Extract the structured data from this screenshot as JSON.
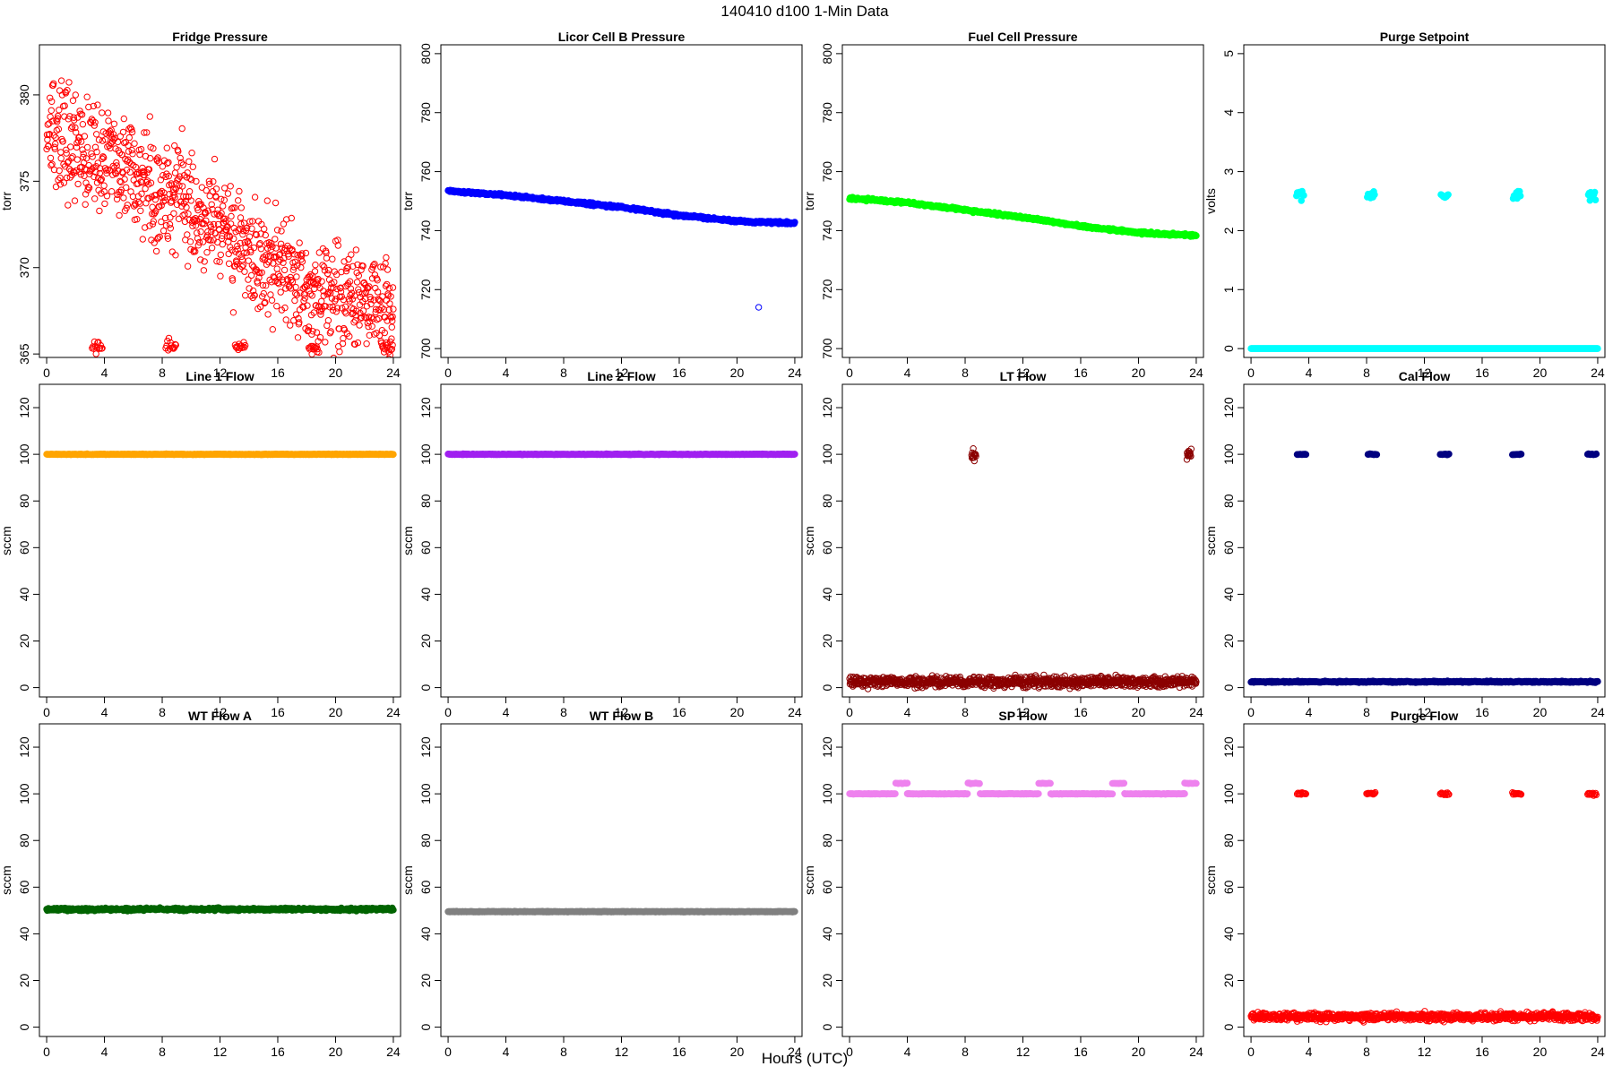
{
  "figure": {
    "title": "140410    d100    1-Min Data",
    "xlabel": "Hours (UTC)"
  },
  "chart_data": [
    {
      "type": "scatter",
      "title": "Fridge Pressure",
      "ylabel": "torr",
      "color": "#ff0000",
      "xlim": [
        -0.5,
        24.5
      ],
      "ylim": [
        364.8,
        382.9
      ],
      "xticks": [
        0,
        4,
        8,
        12,
        16,
        20,
        24
      ],
      "yticks": [
        365,
        370,
        375,
        380
      ],
      "trend": [
        [
          0,
          378
        ],
        [
          4,
          376.2
        ],
        [
          8,
          374.4
        ],
        [
          12,
          372.2
        ],
        [
          16,
          369.8
        ],
        [
          20,
          368.2
        ],
        [
          24,
          367.7
        ]
      ],
      "noise": 2.2,
      "events": [
        [
          3.5,
          365.4
        ],
        [
          8.6,
          365.5
        ],
        [
          13.4,
          365.4
        ],
        [
          18.5,
          365.4
        ],
        [
          23.6,
          365.4
        ]
      ],
      "event_halfwidth": 0.35,
      "event_spread": 0.25,
      "point_style": "open",
      "density": 1
    },
    {
      "type": "scatter",
      "title": "Licor Cell B Pressure",
      "ylabel": "torr",
      "color": "#0000ff",
      "xlim": [
        -0.5,
        24.5
      ],
      "ylim": [
        697,
        803
      ],
      "xticks": [
        0,
        4,
        8,
        12,
        16,
        20,
        24
      ],
      "yticks": [
        700,
        720,
        740,
        760,
        780,
        800
      ],
      "trend": [
        [
          0,
          753.5
        ],
        [
          4,
          752
        ],
        [
          8,
          750
        ],
        [
          12,
          748
        ],
        [
          16,
          745.2
        ],
        [
          20,
          743.2
        ],
        [
          24,
          742.5
        ]
      ],
      "noise": 0.3,
      "outliers": [
        [
          21.5,
          714
        ]
      ],
      "point_style": "dense",
      "density": 1
    },
    {
      "type": "scatter",
      "title": "Fuel Cell Pressure",
      "ylabel": "torr",
      "color": "#00ff00",
      "xlim": [
        -0.5,
        24.5
      ],
      "ylim": [
        697,
        803
      ],
      "xticks": [
        0,
        4,
        8,
        12,
        16,
        20,
        24
      ],
      "yticks": [
        700,
        720,
        740,
        760,
        780,
        800
      ],
      "trend": [
        [
          0,
          751
        ],
        [
          4,
          749.5
        ],
        [
          8,
          747
        ],
        [
          12,
          744.5
        ],
        [
          16,
          741.5
        ],
        [
          20,
          739.3
        ],
        [
          24,
          738.3
        ]
      ],
      "noise": 0.3,
      "point_style": "dense",
      "density": 1
    },
    {
      "type": "scatter",
      "title": "Purge Setpoint",
      "ylabel": "volts",
      "color": "#00ffff",
      "xlim": [
        -0.5,
        24.5
      ],
      "ylim": [
        -0.15,
        5.15
      ],
      "xticks": [
        0,
        4,
        8,
        12,
        16,
        20,
        24
      ],
      "yticks": [
        0,
        1,
        2,
        3,
        4,
        5
      ],
      "baseline": 0,
      "noise": 0.0,
      "events": [
        [
          3.4,
          2.6
        ],
        [
          8.3,
          2.58
        ],
        [
          13.4,
          2.6
        ],
        [
          18.4,
          2.58
        ],
        [
          23.6,
          2.6
        ]
      ],
      "event_halfwidth": 0.25,
      "event_spread": 0.06,
      "point_style": "dense",
      "density": 1
    },
    {
      "type": "scatter",
      "title": "Line 1 Flow",
      "ylabel": "sccm",
      "color": "#ffa500",
      "xlim": [
        -0.5,
        24.5
      ],
      "ylim": [
        -4,
        130
      ],
      "xticks": [
        0,
        4,
        8,
        12,
        16,
        20,
        24
      ],
      "yticks": [
        0,
        20,
        40,
        60,
        80,
        100,
        120
      ],
      "baseline": 100,
      "noise": 0.1,
      "point_style": "dense",
      "density": 1
    },
    {
      "type": "scatter",
      "title": "Line 2 Flow",
      "ylabel": "sccm",
      "color": "#a020f0",
      "xlim": [
        -0.5,
        24.5
      ],
      "ylim": [
        -4,
        130
      ],
      "xticks": [
        0,
        4,
        8,
        12,
        16,
        20,
        24
      ],
      "yticks": [
        0,
        20,
        40,
        60,
        80,
        100,
        120
      ],
      "baseline": 100,
      "noise": 0.1,
      "point_style": "dense",
      "density": 1
    },
    {
      "type": "scatter",
      "title": "LT Flow",
      "ylabel": "sccm",
      "color": "#8b0000",
      "xlim": [
        -0.5,
        24.5
      ],
      "ylim": [
        -4,
        130
      ],
      "xticks": [
        0,
        4,
        8,
        12,
        16,
        20,
        24
      ],
      "yticks": [
        0,
        20,
        40,
        60,
        80,
        100,
        120
      ],
      "baseline": 2.5,
      "noise": 1.6,
      "events": [
        [
          8.6,
          100
        ],
        [
          23.5,
          100
        ]
      ],
      "event_halfwidth": 0.15,
      "event_spread": 1.5,
      "point_style": "open",
      "density": 1
    },
    {
      "type": "scatter",
      "title": "Cal Flow",
      "ylabel": "sccm",
      "color": "#000080",
      "xlim": [
        -0.5,
        24.5
      ],
      "ylim": [
        -4,
        130
      ],
      "xticks": [
        0,
        4,
        8,
        12,
        16,
        20,
        24
      ],
      "yticks": [
        0,
        20,
        40,
        60,
        80,
        100,
        120
      ],
      "baseline": 2.5,
      "noise": 0.2,
      "events": [
        [
          3.5,
          100
        ],
        [
          8.4,
          100
        ],
        [
          13.4,
          100
        ],
        [
          18.4,
          100
        ],
        [
          23.6,
          100
        ]
      ],
      "event_halfwidth": 0.3,
      "event_spread": 0.15,
      "point_style": "dense",
      "density": 1
    },
    {
      "type": "scatter",
      "title": "WT Flow A",
      "ylabel": "sccm",
      "color": "#006400",
      "xlim": [
        -0.5,
        24.5
      ],
      "ylim": [
        -4,
        130
      ],
      "xticks": [
        0,
        4,
        8,
        12,
        16,
        20,
        24
      ],
      "yticks": [
        0,
        20,
        40,
        60,
        80,
        100,
        120
      ],
      "baseline": 50.5,
      "noise": 0.4,
      "point_style": "dense",
      "density": 1
    },
    {
      "type": "scatter",
      "title": "WT Flow B",
      "ylabel": "sccm",
      "color": "#808080",
      "xlim": [
        -0.5,
        24.5
      ],
      "ylim": [
        -4,
        130
      ],
      "xticks": [
        0,
        4,
        8,
        12,
        16,
        20,
        24
      ],
      "yticks": [
        0,
        20,
        40,
        60,
        80,
        100,
        120
      ],
      "baseline": 49.5,
      "noise": 0.1,
      "point_style": "dense",
      "density": 1
    },
    {
      "type": "scatter",
      "title": "SP Flow",
      "ylabel": "sccm",
      "color": "#ee82ee",
      "xlim": [
        -0.5,
        24.5
      ],
      "ylim": [
        -4,
        130
      ],
      "xticks": [
        0,
        4,
        8,
        12,
        16,
        20,
        24
      ],
      "yticks": [
        0,
        20,
        40,
        60,
        80,
        100,
        120
      ],
      "baseline": 100,
      "noise": 0.1,
      "events": [
        [
          3.6,
          104.5
        ],
        [
          8.6,
          104.5
        ],
        [
          13.5,
          104.5
        ],
        [
          18.6,
          104.5
        ],
        [
          23.6,
          104.5
        ]
      ],
      "event_halfwidth": 0.4,
      "event_spread": 0.1,
      "event_replaces_baseline": true,
      "point_style": "dense",
      "density": 1
    },
    {
      "type": "scatter",
      "title": "Purge Flow",
      "ylabel": "sccm",
      "color": "#ff0000",
      "xlim": [
        -0.5,
        24.5
      ],
      "ylim": [
        -4,
        130
      ],
      "xticks": [
        0,
        4,
        8,
        12,
        16,
        20,
        24
      ],
      "yticks": [
        0,
        20,
        40,
        60,
        80,
        100,
        120
      ],
      "baseline": 4.5,
      "noise": 1.2,
      "events": [
        [
          3.5,
          100
        ],
        [
          8.3,
          100
        ],
        [
          13.4,
          100
        ],
        [
          18.4,
          100
        ],
        [
          23.6,
          100
        ]
      ],
      "event_halfwidth": 0.3,
      "event_spread": 0.4,
      "point_style": "open",
      "density": 1
    }
  ]
}
